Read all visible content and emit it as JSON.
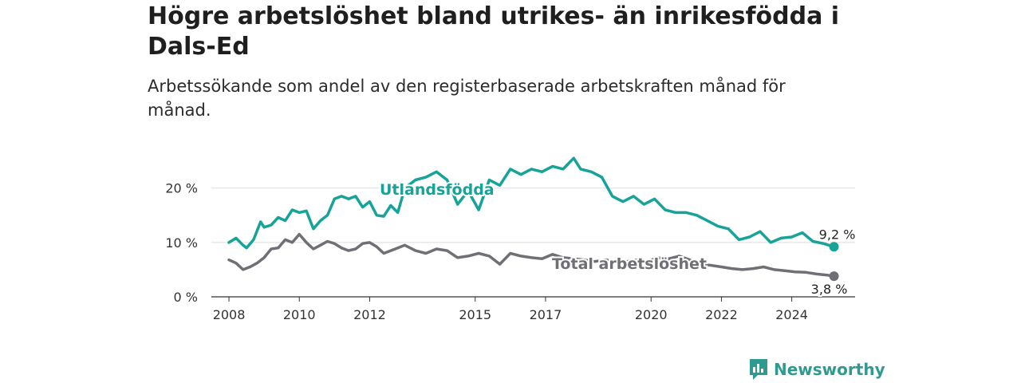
{
  "title": "Högre arbetslöshet bland utrikes- än inrikesfödda i Dals-Ed",
  "subtitle": "Arbetssökande som andel av den registerbaserade arbetskraften månad för månad.",
  "brand": {
    "name": "Newsworthy"
  },
  "colors": {
    "foreign": "#17a398",
    "total": "#6f6f76",
    "grid": "#dddddd",
    "axis": "#333333"
  },
  "chart_data": {
    "type": "line",
    "xlabel": "",
    "ylabel": "",
    "ylim": [
      0,
      27
    ],
    "xlim": [
      2007.5,
      2025.8
    ],
    "x_ticks": [
      2008,
      2010,
      2012,
      2015,
      2017,
      2020,
      2022,
      2024
    ],
    "x_tick_labels": [
      "2008",
      "2010",
      "2012",
      "2015",
      "2017",
      "2020",
      "2022",
      "2024"
    ],
    "y_ticks": [
      0,
      10,
      20
    ],
    "y_tick_labels": [
      "0 %",
      "10 %",
      "20 %"
    ],
    "grid": true,
    "series": [
      {
        "name": "Utlandsfödda",
        "end_label": "9,2 %",
        "x": [
          2008.0,
          2008.2,
          2008.4,
          2008.5,
          2008.7,
          2008.9,
          2009.0,
          2009.2,
          2009.4,
          2009.6,
          2009.8,
          2010.0,
          2010.2,
          2010.4,
          2010.6,
          2010.8,
          2011.0,
          2011.2,
          2011.4,
          2011.6,
          2011.8,
          2012.0,
          2012.2,
          2012.4,
          2012.6,
          2012.8,
          2013.0,
          2013.3,
          2013.6,
          2013.9,
          2014.2,
          2014.5,
          2014.8,
          2015.1,
          2015.4,
          2015.7,
          2016.0,
          2016.3,
          2016.6,
          2016.9,
          2017.2,
          2017.5,
          2017.8,
          2018.0,
          2018.3,
          2018.6,
          2018.9,
          2019.2,
          2019.5,
          2019.8,
          2020.1,
          2020.4,
          2020.7,
          2021.0,
          2021.3,
          2021.6,
          2021.9,
          2022.2,
          2022.5,
          2022.8,
          2023.1,
          2023.4,
          2023.7,
          2024.0,
          2024.3,
          2024.6,
          2024.9,
          2025.2
        ],
        "values": [
          10.0,
          10.8,
          9.5,
          9.0,
          10.5,
          13.8,
          12.8,
          13.2,
          14.6,
          14.0,
          16.0,
          15.5,
          15.8,
          12.5,
          14.0,
          15.0,
          18.0,
          18.5,
          18.0,
          18.5,
          16.5,
          17.5,
          15.0,
          14.8,
          16.8,
          15.5,
          20.0,
          21.5,
          22.0,
          23.0,
          21.5,
          17.0,
          19.5,
          16.0,
          21.5,
          20.5,
          23.5,
          22.5,
          23.5,
          23.0,
          24.0,
          23.5,
          25.5,
          23.5,
          23.0,
          22.0,
          18.5,
          17.5,
          18.5,
          17.0,
          18.0,
          16.0,
          15.5,
          15.5,
          15.0,
          14.0,
          13.0,
          12.5,
          10.5,
          11.0,
          12.0,
          10.0,
          10.8,
          11.0,
          11.8,
          10.2,
          9.8,
          9.2
        ]
      },
      {
        "name": "Total arbetslöshet",
        "end_label": "3,8 %",
        "x": [
          2008.0,
          2008.2,
          2008.4,
          2008.6,
          2008.8,
          2009.0,
          2009.2,
          2009.4,
          2009.6,
          2009.8,
          2010.0,
          2010.2,
          2010.4,
          2010.6,
          2010.8,
          2011.0,
          2011.2,
          2011.4,
          2011.6,
          2011.8,
          2012.0,
          2012.2,
          2012.4,
          2012.6,
          2012.8,
          2013.0,
          2013.3,
          2013.6,
          2013.9,
          2014.2,
          2014.5,
          2014.8,
          2015.1,
          2015.4,
          2015.7,
          2016.0,
          2016.3,
          2016.6,
          2016.9,
          2017.2,
          2017.5,
          2017.8,
          2018.1,
          2018.4,
          2018.7,
          2019.0,
          2019.3,
          2019.6,
          2019.9,
          2020.2,
          2020.5,
          2020.8,
          2021.1,
          2021.4,
          2021.7,
          2022.0,
          2022.3,
          2022.6,
          2022.9,
          2023.2,
          2023.5,
          2023.8,
          2024.1,
          2024.4,
          2024.7,
          2025.0,
          2025.2
        ],
        "values": [
          6.8,
          6.2,
          5.0,
          5.5,
          6.2,
          7.2,
          8.8,
          9.0,
          10.5,
          10.0,
          11.5,
          10.0,
          8.8,
          9.5,
          10.2,
          9.8,
          9.0,
          8.5,
          8.8,
          9.8,
          10.0,
          9.2,
          8.0,
          8.5,
          9.0,
          9.5,
          8.5,
          8.0,
          8.8,
          8.5,
          7.2,
          7.5,
          8.0,
          7.5,
          6.0,
          8.0,
          7.5,
          7.2,
          7.0,
          7.8,
          7.2,
          7.0,
          6.8,
          6.5,
          6.8,
          6.6,
          6.5,
          6.8,
          6.5,
          7.2,
          7.0,
          7.5,
          6.8,
          6.0,
          5.8,
          5.5,
          5.2,
          5.0,
          5.2,
          5.5,
          5.0,
          4.8,
          4.6,
          4.5,
          4.2,
          4.0,
          3.8
        ]
      }
    ]
  }
}
